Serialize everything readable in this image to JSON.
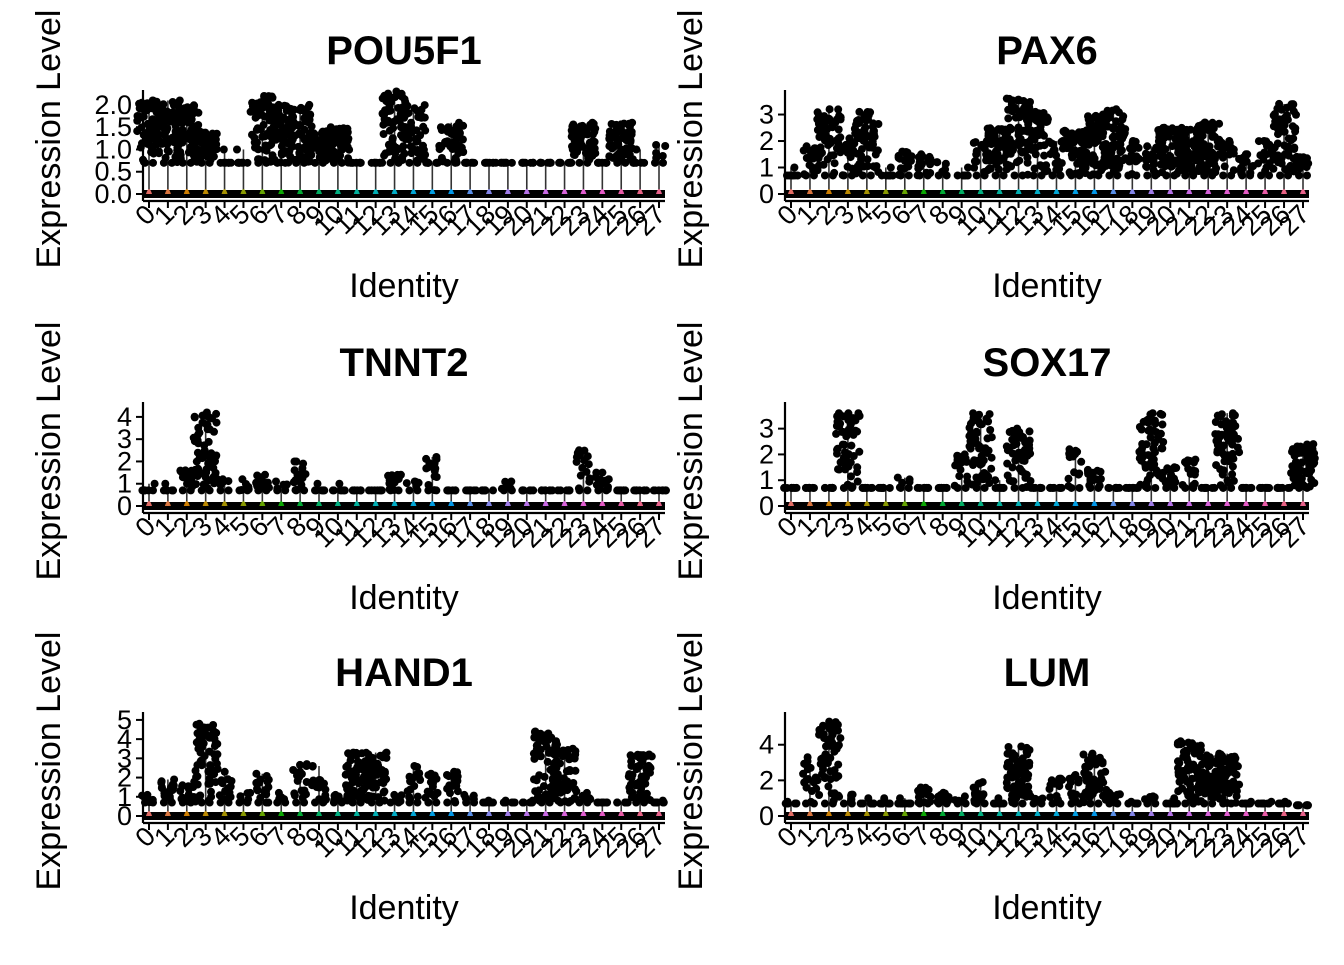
{
  "chart_data": [
    {
      "type": "violin",
      "title": "POU5F1",
      "xlabel": "Identity",
      "ylabel": "Expression Level",
      "yticks": [
        "0.0",
        "0.5",
        "1.0",
        "1.5",
        "2.0"
      ],
      "ylim": [
        0,
        2.2
      ],
      "categories": [
        "0",
        "1",
        "2",
        "3",
        "4",
        "5",
        "6",
        "7",
        "8",
        "9",
        "10",
        "11",
        "12",
        "13",
        "14",
        "15",
        "16",
        "17",
        "18",
        "19",
        "20",
        "21",
        "22",
        "23",
        "24",
        "25",
        "26",
        "27"
      ],
      "max_values": [
        2.1,
        2.1,
        2.0,
        1.4,
        1.0,
        1.0,
        2.2,
        2.0,
        2.0,
        1.4,
        1.5,
        0.7,
        0.7,
        2.3,
        2.0,
        0.7,
        1.6,
        0.7,
        0.7,
        0.7,
        0.7,
        0.7,
        0.7,
        1.6,
        0.7,
        1.6,
        1.0,
        1.1
      ]
    },
    {
      "type": "violin",
      "title": "PAX6",
      "xlabel": "Identity",
      "ylabel": "Expression Level",
      "yticks": [
        "0",
        "1",
        "2",
        "3"
      ],
      "ylim": [
        0,
        3.7
      ],
      "categories": [
        "0",
        "1",
        "2",
        "3",
        "4",
        "5",
        "6",
        "7",
        "8",
        "9",
        "10",
        "11",
        "12",
        "13",
        "14",
        "15",
        "16",
        "17",
        "18",
        "19",
        "20",
        "21",
        "22",
        "23",
        "24",
        "25",
        "26",
        "27"
      ],
      "max_values": [
        1.0,
        1.8,
        3.2,
        2.1,
        3.1,
        1.0,
        1.6,
        1.5,
        1.2,
        1.0,
        2.0,
        2.5,
        3.6,
        3.1,
        2.0,
        2.4,
        3.0,
        3.2,
        2.0,
        1.8,
        2.5,
        2.5,
        2.7,
        2.0,
        1.5,
        2.0,
        3.4,
        1.4
      ]
    },
    {
      "type": "violin",
      "title": "TNNT2",
      "xlabel": "Identity",
      "ylabel": "Expression Level",
      "yticks": [
        "0",
        "1",
        "2",
        "3",
        "4"
      ],
      "ylim": [
        0,
        4.4
      ],
      "categories": [
        "0",
        "1",
        "2",
        "3",
        "4",
        "5",
        "6",
        "7",
        "8",
        "9",
        "10",
        "11",
        "12",
        "13",
        "14",
        "15",
        "16",
        "17",
        "18",
        "19",
        "20",
        "21",
        "22",
        "23",
        "24",
        "25",
        "26",
        "27"
      ],
      "max_values": [
        1.0,
        1.0,
        1.6,
        4.2,
        1.2,
        1.2,
        1.4,
        1.1,
        2.0,
        1.0,
        1.0,
        0.7,
        0.7,
        1.4,
        1.1,
        2.2,
        0.7,
        0.7,
        0.7,
        1.1,
        0.7,
        0.7,
        0.7,
        2.5,
        1.5,
        0.7,
        0.7,
        0.7
      ]
    },
    {
      "type": "violin",
      "title": "SOX17",
      "xlabel": "Identity",
      "ylabel": "Expression Level",
      "yticks": [
        "0",
        "1",
        "2",
        "3"
      ],
      "ylim": [
        0,
        3.8
      ],
      "categories": [
        "0",
        "1",
        "2",
        "3",
        "4",
        "5",
        "6",
        "7",
        "8",
        "9",
        "10",
        "11",
        "12",
        "13",
        "14",
        "15",
        "16",
        "17",
        "18",
        "19",
        "20",
        "21",
        "22",
        "23",
        "24",
        "25",
        "26",
        "27"
      ],
      "max_values": [
        0.7,
        0.7,
        0.7,
        3.6,
        0.7,
        0.7,
        1.1,
        0.7,
        0.7,
        2.0,
        3.6,
        1.0,
        3.0,
        0.7,
        0.7,
        2.2,
        1.4,
        0.7,
        0.7,
        3.6,
        1.5,
        1.8,
        0.7,
        3.6,
        0.7,
        0.7,
        0.7,
        2.4
      ]
    },
    {
      "type": "violin",
      "title": "HAND1",
      "xlabel": "Identity",
      "ylabel": "Expression Level",
      "yticks": [
        "0",
        "1",
        "2",
        "3",
        "4",
        "5"
      ],
      "ylim": [
        0,
        5.1
      ],
      "categories": [
        "0",
        "1",
        "2",
        "3",
        "4",
        "5",
        "6",
        "7",
        "8",
        "9",
        "10",
        "11",
        "12",
        "13",
        "14",
        "15",
        "16",
        "17",
        "18",
        "19",
        "20",
        "21",
        "22",
        "23",
        "24",
        "25",
        "26",
        "27"
      ],
      "max_values": [
        1.1,
        1.9,
        1.6,
        4.8,
        2.3,
        1.2,
        2.2,
        1.2,
        2.7,
        2.6,
        1.1,
        3.3,
        3.3,
        1.1,
        2.6,
        2.2,
        2.3,
        1.1,
        0.8,
        0.8,
        0.8,
        4.4,
        3.5,
        1.2,
        0.7,
        0.7,
        3.2,
        0.8
      ]
    },
    {
      "type": "violin",
      "title": "LUM",
      "xlabel": "Identity",
      "ylabel": "Expression Level",
      "yticks": [
        "0",
        "2",
        "4"
      ],
      "ylim": [
        0,
        5.5
      ],
      "categories": [
        "0",
        "1",
        "2",
        "3",
        "4",
        "5",
        "6",
        "7",
        "8",
        "9",
        "10",
        "11",
        "12",
        "13",
        "14",
        "15",
        "16",
        "17",
        "18",
        "19",
        "20",
        "21",
        "22",
        "23",
        "24",
        "25",
        "26",
        "27"
      ],
      "max_values": [
        0.8,
        3.3,
        5.3,
        1.2,
        1.0,
        1.0,
        1.0,
        1.6,
        1.3,
        1.1,
        1.9,
        1.0,
        3.9,
        1.1,
        2.1,
        2.3,
        3.5,
        1.3,
        0.8,
        1.1,
        1.0,
        4.2,
        3.4,
        3.5,
        0.8,
        0.8,
        0.8,
        0.6
      ]
    }
  ]
}
